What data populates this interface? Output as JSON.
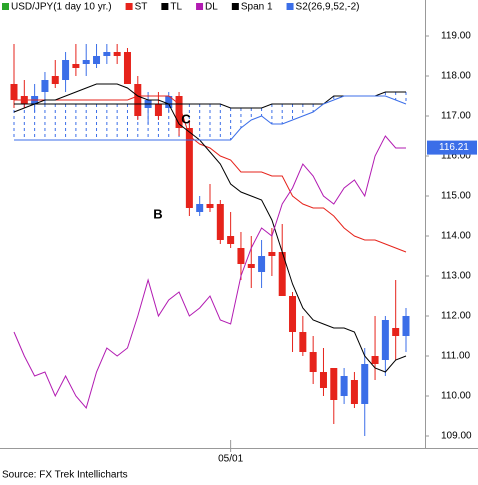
{
  "chart_data": {
    "type": "candlestick",
    "name": "USD/JPY(1 day  10 yr.)",
    "legend_color": "#2aa52a",
    "up_color": "#3b6ee8",
    "down_color": "#e6231b",
    "categories": [
      null,
      null,
      null,
      null,
      null,
      null,
      null,
      null,
      null,
      null,
      null,
      null,
      null,
      null,
      null,
      null,
      null,
      null,
      null,
      null,
      null,
      "05/01",
      null,
      null,
      null,
      null,
      null,
      null,
      null,
      null,
      null,
      null,
      null,
      null,
      null,
      null,
      null,
      null,
      null
    ],
    "open": [
      117.8,
      117.5,
      117.3,
      117.6,
      118.0,
      117.9,
      118.3,
      118.3,
      118.3,
      118.5,
      118.6,
      118.6,
      117.8,
      117.2,
      117.3,
      117.2,
      117.5,
      116.7,
      114.6,
      114.8,
      114.8,
      114.0,
      113.7,
      113.3,
      113.1,
      113.6,
      113.6,
      112.5,
      111.6,
      111.1,
      110.6,
      110.7,
      110.0,
      110.4,
      109.8,
      111.0,
      110.9,
      111.7,
      111.5
    ],
    "high": [
      118.8,
      117.9,
      117.8,
      118.1,
      118.4,
      118.6,
      118.8,
      118.8,
      118.8,
      118.8,
      118.8,
      118.7,
      118.0,
      117.6,
      117.6,
      117.6,
      117.6,
      116.9,
      115.0,
      115.3,
      114.9,
      114.6,
      114.1,
      114.0,
      113.9,
      114.2,
      114.3,
      112.6,
      112.0,
      111.5,
      111.2,
      110.7,
      110.7,
      110.6,
      111.2,
      112.0,
      112.0,
      112.9,
      112.2
    ],
    "low": [
      117.2,
      117.2,
      117.1,
      117.3,
      117.7,
      117.6,
      118.0,
      118.0,
      118.2,
      118.3,
      118.3,
      117.8,
      116.9,
      116.8,
      116.9,
      117.1,
      116.5,
      114.5,
      114.5,
      114.6,
      113.8,
      113.7,
      112.9,
      112.7,
      112.7,
      113.0,
      112.5,
      111.1,
      111.0,
      110.3,
      110.0,
      109.3,
      109.8,
      109.7,
      109.0,
      110.4,
      110.5,
      110.9,
      111.1
    ],
    "close": [
      117.4,
      117.3,
      117.5,
      117.9,
      117.8,
      118.4,
      118.2,
      118.4,
      118.5,
      118.6,
      118.5,
      117.8,
      117.0,
      117.4,
      117.0,
      117.5,
      116.7,
      114.7,
      114.8,
      114.7,
      113.9,
      113.8,
      113.3,
      113.2,
      113.5,
      113.5,
      112.5,
      111.6,
      111.1,
      110.6,
      110.2,
      109.9,
      110.5,
      109.8,
      110.8,
      110.8,
      111.9,
      111.5,
      112.0
    ],
    "series": [
      {
        "name": "ST",
        "color": "#e6231b",
        "values": [
          117.4,
          117.4,
          117.4,
          117.4,
          117.4,
          117.4,
          117.4,
          117.4,
          117.4,
          117.4,
          117.4,
          117.4,
          117.5,
          117.5,
          117.5,
          117.5,
          117.3,
          116.5,
          116.3,
          116.2,
          116.0,
          115.9,
          115.6,
          115.6,
          115.6,
          115.5,
          115.5,
          115.0,
          114.8,
          114.7,
          114.7,
          114.5,
          114.2,
          114.0,
          113.9,
          113.9,
          113.8,
          113.7,
          113.6
        ]
      },
      {
        "name": "TL",
        "color": "#000000",
        "values": [
          117.1,
          117.2,
          117.3,
          117.4,
          117.4,
          117.5,
          117.6,
          117.7,
          117.8,
          117.8,
          117.8,
          117.7,
          117.5,
          117.4,
          117.4,
          117.3,
          116.8,
          116.6,
          116.4,
          116.1,
          115.8,
          115.3,
          115.1,
          115.0,
          114.9,
          114.4,
          113.6,
          112.8,
          112.2,
          111.9,
          111.8,
          111.7,
          111.7,
          111.6,
          111.0,
          110.7,
          110.6,
          110.9,
          111.0
        ]
      },
      {
        "name": "DL",
        "color": "#b21bb2",
        "values": [
          111.6,
          111.0,
          110.5,
          110.6,
          110.0,
          110.5,
          110.0,
          109.7,
          110.6,
          111.2,
          111.0,
          111.2,
          112.0,
          112.9,
          112.0,
          112.4,
          112.6,
          112.0,
          112.2,
          112.5,
          111.9,
          111.8,
          113.0,
          113.7,
          114.2,
          114.0,
          114.8,
          115.2,
          115.8,
          115.5,
          115.0,
          114.8,
          115.2,
          115.4,
          115.0,
          116.0,
          116.5,
          116.2,
          116.2
        ]
      },
      {
        "name": "Span 1",
        "color": "#000000",
        "values": [
          117.3,
          117.3,
          117.3,
          117.3,
          117.3,
          117.3,
          117.3,
          117.3,
          117.3,
          117.3,
          117.3,
          117.3,
          117.3,
          117.3,
          117.3,
          117.3,
          117.3,
          117.3,
          117.3,
          117.3,
          117.3,
          117.2,
          117.2,
          117.2,
          117.2,
          117.3,
          117.3,
          117.3,
          117.3,
          117.3,
          117.3,
          117.5,
          117.5,
          117.5,
          117.5,
          117.5,
          117.6,
          117.6,
          117.6
        ]
      },
      {
        "name": "S2(26,9,52,-2)",
        "color": "#3b6ee8",
        "values": [
          116.4,
          116.4,
          116.4,
          116.4,
          116.4,
          116.4,
          116.4,
          116.4,
          116.4,
          116.4,
          116.4,
          116.4,
          116.4,
          116.4,
          116.4,
          116.4,
          116.4,
          116.4,
          116.4,
          116.4,
          116.4,
          116.4,
          116.7,
          116.9,
          117.0,
          116.8,
          116.8,
          116.9,
          117.0,
          117.1,
          117.3,
          117.4,
          117.5,
          117.5,
          117.5,
          117.5,
          117.5,
          117.4,
          117.3
        ]
      }
    ],
    "ylim": [
      108.7,
      119.5
    ],
    "yticks": [
      {
        "value": 109,
        "label": "109.00"
      },
      {
        "value": 110,
        "label": "110.00"
      },
      {
        "value": 111,
        "label": "111.00"
      },
      {
        "value": 112,
        "label": "112.00"
      },
      {
        "value": 113,
        "label": "113.00"
      },
      {
        "value": 114,
        "label": "114.00"
      },
      {
        "value": 115,
        "label": "115.00"
      },
      {
        "value": 116,
        "label": "116.00"
      },
      {
        "value": 117,
        "label": "117.00"
      },
      {
        "value": 118,
        "label": "118.00"
      },
      {
        "value": 119,
        "label": "119.00"
      }
    ],
    "last_price": 116.21,
    "annotations": [
      {
        "text": "B"
      },
      {
        "text": "C"
      }
    ],
    "source": "Source: FX Trek Intellicharts"
  }
}
